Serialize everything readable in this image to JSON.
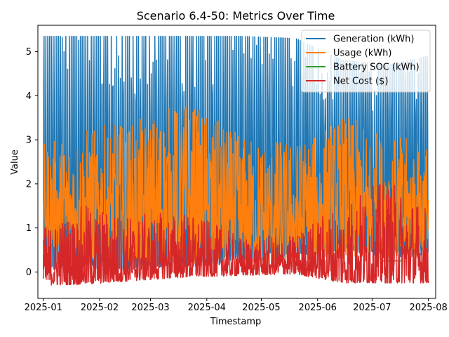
{
  "chart_data": {
    "type": "line",
    "title": "Scenario 6.4-50: Metrics Over Time",
    "xlabel": "Timestamp",
    "ylabel": "Value",
    "x_range": [
      "2024-12-29",
      "2025-08-05"
    ],
    "ylim": [
      -0.6,
      5.6
    ],
    "x_ticks": [
      "2025-01-01",
      "2025-02-01",
      "2025-03-01",
      "2025-04-01",
      "2025-05-01",
      "2025-06-01",
      "2025-07-01",
      "2025-08-01"
    ],
    "x_tick_labels": [
      "2025-01",
      "2025-02",
      "2025-03",
      "2025-04",
      "2025-05",
      "2025-06",
      "2025-07",
      "2025-08"
    ],
    "y_ticks": [
      0,
      1,
      2,
      3,
      4,
      5
    ],
    "y_tick_labels": [
      "0",
      "1",
      "2",
      "3",
      "4",
      "5"
    ],
    "grid": false,
    "legend_position": "upper right",
    "data_start": "2025-01-01",
    "data_end": "2025-08-01",
    "series": [
      {
        "name": "Generation (kWh)",
        "color": "#1f77b4",
        "low_profile": [
          0.0,
          0.05,
          0.05,
          0.1,
          0.2,
          0.3,
          0.5,
          0.3,
          0.4
        ],
        "high_profile": [
          5.35,
          5.35,
          5.35,
          5.35,
          5.35,
          5.3,
          4.8,
          4.7,
          4.9
        ],
        "profile_dates": [
          "2025-01-01",
          "2025-01-25",
          "2025-02-20",
          "2025-03-20",
          "2025-04-20",
          "2025-05-20",
          "2025-06-15",
          "2025-07-10",
          "2025-08-01"
        ]
      },
      {
        "name": "Usage (kWh)",
        "color": "#ff7f0e",
        "low_profile": [
          0.6,
          0.3,
          0.2,
          0.2,
          0.2,
          0.2,
          0.3,
          0.3,
          0.3
        ],
        "high_profile": [
          2.9,
          3.3,
          3.4,
          3.95,
          3.1,
          3.0,
          3.6,
          3.1,
          3.0
        ],
        "profile_dates": [
          "2025-01-01",
          "2025-01-25",
          "2025-02-20",
          "2025-03-20",
          "2025-04-20",
          "2025-05-20",
          "2025-06-15",
          "2025-07-10",
          "2025-08-01"
        ]
      },
      {
        "name": "Battery SOC (kWh)",
        "color": "#2ca02c",
        "segments": [
          {
            "x0": "2025-07-06",
            "x1": "2025-07-18",
            "y": 0.25
          }
        ]
      },
      {
        "name": "Net Cost ($)",
        "color": "#d62728",
        "low_profile": [
          -0.3,
          -0.28,
          -0.2,
          -0.12,
          -0.08,
          -0.05,
          -0.25,
          -0.25,
          -0.25
        ],
        "high_profile": [
          1.05,
          1.55,
          1.3,
          1.4,
          0.8,
          0.85,
          1.7,
          2.1,
          1.5
        ],
        "profile_dates": [
          "2025-01-01",
          "2025-01-25",
          "2025-02-20",
          "2025-03-20",
          "2025-04-20",
          "2025-05-20",
          "2025-06-15",
          "2025-07-10",
          "2025-08-01"
        ]
      }
    ]
  }
}
